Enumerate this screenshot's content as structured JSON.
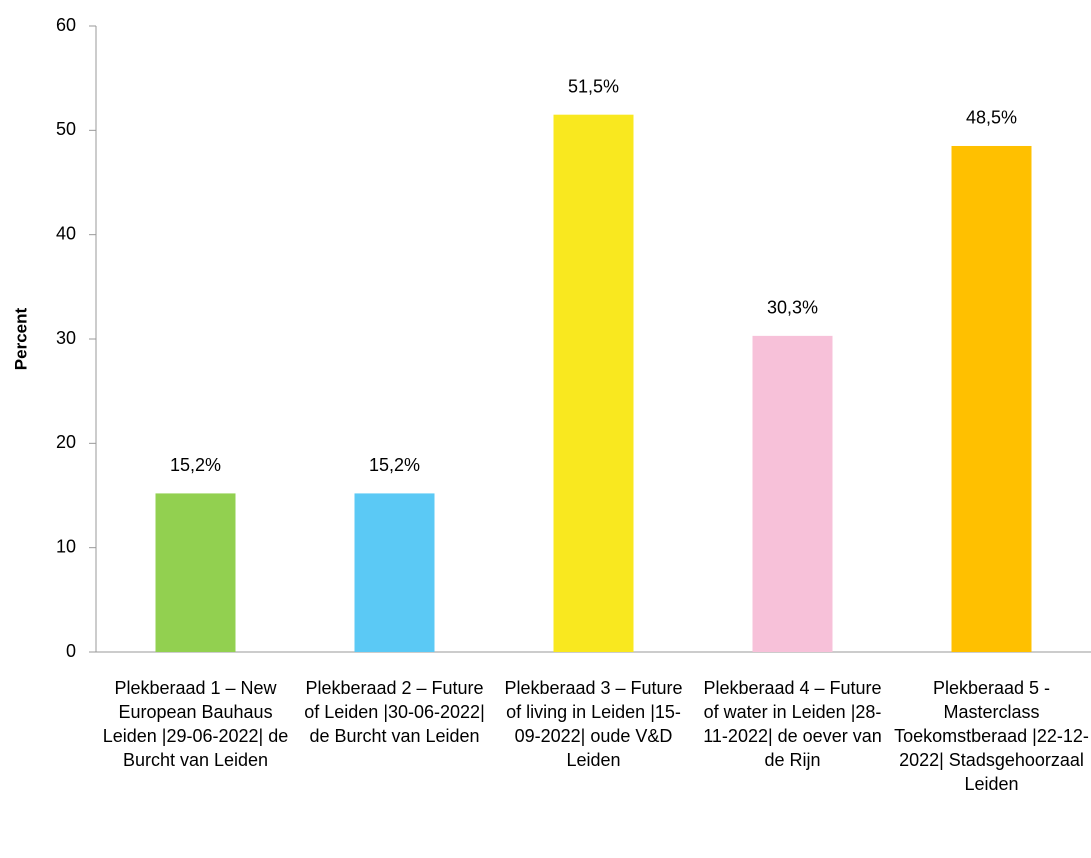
{
  "chart_data": {
    "type": "bar",
    "y_label": "Percent",
    "categories": [
      "Plekberaad 1 – New European Bauhaus Leiden |29-06-2022| de Burcht van Leiden",
      "Plekberaad 2 – Future of Leiden |30-06-2022| de Burcht van Leiden",
      "Plekberaad 3 – Future of living in Leiden |15-09-2022| oude V&D Leiden",
      "Plekberaad 4 – Future of water in Leiden |28-11-2022| de oever van de Rijn",
      "Plekberaad 5 - Masterclass Toekomstberaad |22-12-2022| Stadsgehoorzaal Leiden"
    ],
    "values": [
      15.2,
      15.2,
      51.5,
      30.3,
      48.5
    ],
    "value_labels": [
      "15,2%",
      "15,2%",
      "51,5%",
      "30,3%",
      "48,5%"
    ],
    "colors": [
      "#92d050",
      "#5bc9f5",
      "#f9e81f",
      "#f7c1d9",
      "#ffc000"
    ],
    "ylim": [
      0,
      60
    ],
    "yticks": [
      0,
      10,
      20,
      30,
      40,
      50,
      60
    ],
    "grid": false
  }
}
